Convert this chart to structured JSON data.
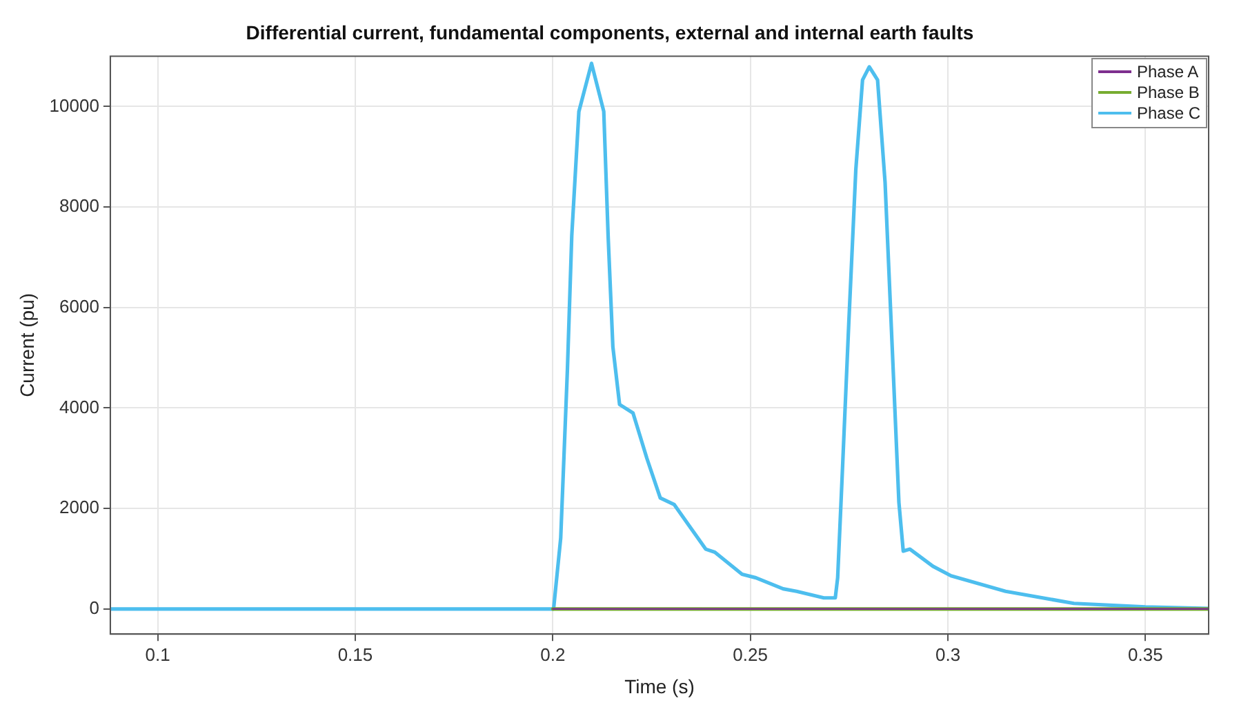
{
  "chart_data": {
    "type": "line",
    "title": "Differential current, fundamental components, external and internal earth faults",
    "xlabel": "Time (s)",
    "ylabel": "Current (pu)",
    "xlim": [
      0.088,
      0.366
    ],
    "xticks": [
      0.1,
      0.15,
      0.2,
      0.25,
      0.3,
      0.35
    ],
    "ylim": [
      -500,
      11000
    ],
    "yticks": [
      0,
      2000,
      4000,
      6000,
      8000,
      10000
    ],
    "grid": true,
    "legend": "top right",
    "marker": "none",
    "line_style": "solid",
    "series": [
      {
        "name": "Phase A",
        "color": "#7e2f8e",
        "x": [
          0.2,
          0.366
        ],
        "values": [
          0,
          0
        ]
      },
      {
        "name": "Phase B",
        "color": "#77ac30",
        "x": [
          0.2,
          0.366
        ],
        "values": [
          0,
          0
        ]
      },
      {
        "name": "Phase C",
        "color": "#4dbeee",
        "x": [
          0.088,
          0.2,
          0.2002,
          0.202,
          0.2037,
          0.2048,
          0.2066,
          0.2098,
          0.2129,
          0.214,
          0.2152,
          0.2169,
          0.2203,
          0.2238,
          0.2272,
          0.2307,
          0.2387,
          0.241,
          0.2479,
          0.2514,
          0.2583,
          0.2617,
          0.2686,
          0.2715,
          0.2721,
          0.2732,
          0.2749,
          0.2767,
          0.2784,
          0.2801,
          0.2822,
          0.2841,
          0.2859,
          0.2876,
          0.2887,
          0.2904,
          0.2962,
          0.3008,
          0.3146,
          0.3319,
          0.35,
          0.366
        ],
        "values": [
          0,
          0,
          0,
          1410,
          4770,
          7430,
          9900,
          10860,
          9900,
          7430,
          5220,
          4070,
          3900,
          3000,
          2210,
          2080,
          1190,
          1130,
          690,
          620,
          400,
          350,
          220,
          220,
          620,
          2570,
          5660,
          8750,
          10530,
          10790,
          10530,
          8490,
          5220,
          2120,
          1150,
          1190,
          850,
          660,
          350,
          110,
          40,
          10
        ]
      }
    ]
  }
}
